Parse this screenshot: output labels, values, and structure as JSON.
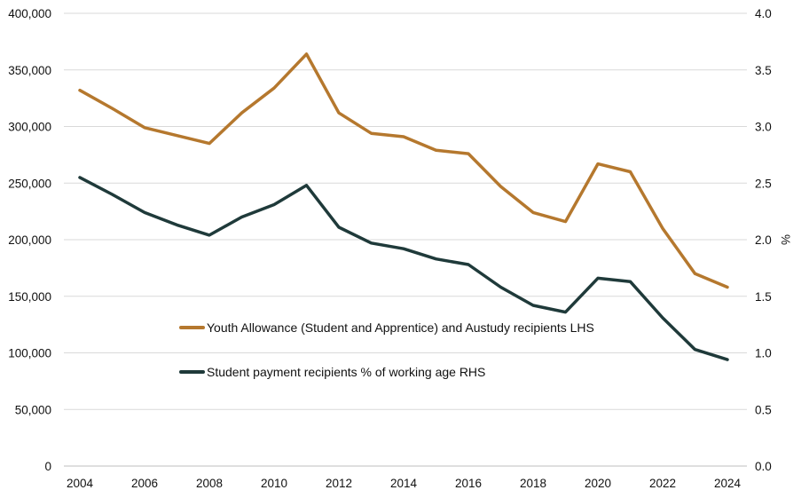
{
  "chart_data": {
    "type": "line",
    "x": [
      2004,
      2005,
      2006,
      2007,
      2008,
      2009,
      2010,
      2011,
      2012,
      2013,
      2014,
      2015,
      2016,
      2017,
      2018,
      2019,
      2020,
      2021,
      2022,
      2023,
      2024
    ],
    "x_tick_labels": [
      "2004",
      "2006",
      "2008",
      "2010",
      "2012",
      "2014",
      "2016",
      "2018",
      "2020",
      "2022",
      "2024"
    ],
    "y_left_ticks": [
      "0",
      "50,000",
      "100,000",
      "150,000",
      "200,000",
      "250,000",
      "300,000",
      "350,000",
      "400,000"
    ],
    "y_right_ticks": [
      "0.0",
      "0.5",
      "1.0",
      "1.5",
      "2.0",
      "2.5",
      "3.0",
      "3.5",
      "4.0"
    ],
    "ylim_left": [
      0,
      400000
    ],
    "ylim_right": [
      0,
      4.0
    ],
    "ylabel_right": "%",
    "grid": true,
    "series": [
      {
        "name": "Youth Allowance (Student and Apprentice) and Austudy recipients LHS",
        "axis": "left",
        "color": "#b5782e",
        "values": [
          332000,
          316000,
          299000,
          292000,
          285000,
          312000,
          334000,
          364000,
          312000,
          294000,
          291000,
          279000,
          276000,
          247000,
          224000,
          216000,
          267000,
          260000,
          210000,
          170000,
          158000
        ]
      },
      {
        "name": "Student payment recipients % of working age RHS",
        "axis": "right",
        "color": "#1f3a3a",
        "values": [
          2.55,
          2.4,
          2.24,
          2.13,
          2.04,
          2.2,
          2.31,
          2.48,
          2.11,
          1.97,
          1.92,
          1.83,
          1.78,
          1.58,
          1.42,
          1.36,
          1.66,
          1.63,
          1.31,
          1.03,
          0.94
        ]
      }
    ]
  }
}
